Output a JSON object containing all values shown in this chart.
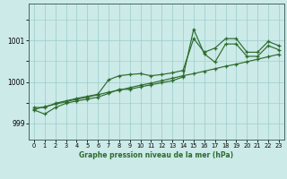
{
  "title": "Graphe pression niveau de la mer (hPa)",
  "bg_color": "#cceae8",
  "grid_color": "#99cccc",
  "line_color": "#2d6b2d",
  "xlim": [
    -0.5,
    23.5
  ],
  "ylim": [
    998.6,
    1001.9
  ],
  "xticks": [
    0,
    1,
    2,
    3,
    4,
    5,
    6,
    7,
    8,
    9,
    10,
    11,
    12,
    13,
    14,
    15,
    16,
    17,
    18,
    19,
    20,
    21,
    22,
    23
  ],
  "yticks": [
    999,
    1000,
    1001
  ],
  "line1_x": [
    0,
    1,
    2,
    3,
    4,
    5,
    6,
    7,
    8,
    9,
    10,
    11,
    12,
    13,
    14,
    15,
    16,
    17,
    18,
    19,
    20,
    21,
    22,
    23
  ],
  "line1_y": [
    999.38,
    999.38,
    999.48,
    999.54,
    999.6,
    999.65,
    999.7,
    1000.05,
    1000.15,
    1000.18,
    1000.2,
    1000.15,
    1000.18,
    1000.22,
    1000.28,
    1001.05,
    1000.72,
    1000.82,
    1001.05,
    1001.05,
    1000.72,
    1000.72,
    1000.98,
    1000.88
  ],
  "line2_x": [
    0,
    1,
    2,
    3,
    4,
    5,
    6,
    7,
    8,
    9,
    10,
    11,
    12,
    13,
    14,
    15,
    16,
    17,
    18,
    19,
    20,
    21,
    22,
    23
  ],
  "line2_y": [
    999.32,
    999.22,
    999.38,
    999.48,
    999.54,
    999.58,
    999.63,
    999.72,
    999.82,
    999.82,
    999.88,
    999.93,
    999.98,
    1000.03,
    1000.12,
    1001.28,
    1000.68,
    1000.48,
    1000.92,
    1000.92,
    1000.62,
    1000.62,
    1000.88,
    1000.78
  ],
  "line3_x": [
    0,
    1,
    2,
    3,
    4,
    5,
    6,
    7,
    8,
    9,
    10,
    11,
    12,
    13,
    14,
    15,
    16,
    17,
    18,
    19,
    20,
    21,
    22,
    23
  ],
  "line3_y": [
    999.33,
    999.4,
    999.46,
    999.52,
    999.58,
    999.63,
    999.69,
    999.75,
    999.8,
    999.86,
    999.92,
    999.97,
    1000.03,
    1000.09,
    1000.15,
    1000.2,
    1000.26,
    1000.32,
    1000.38,
    1000.43,
    1000.49,
    1000.55,
    1000.61,
    1000.67
  ]
}
